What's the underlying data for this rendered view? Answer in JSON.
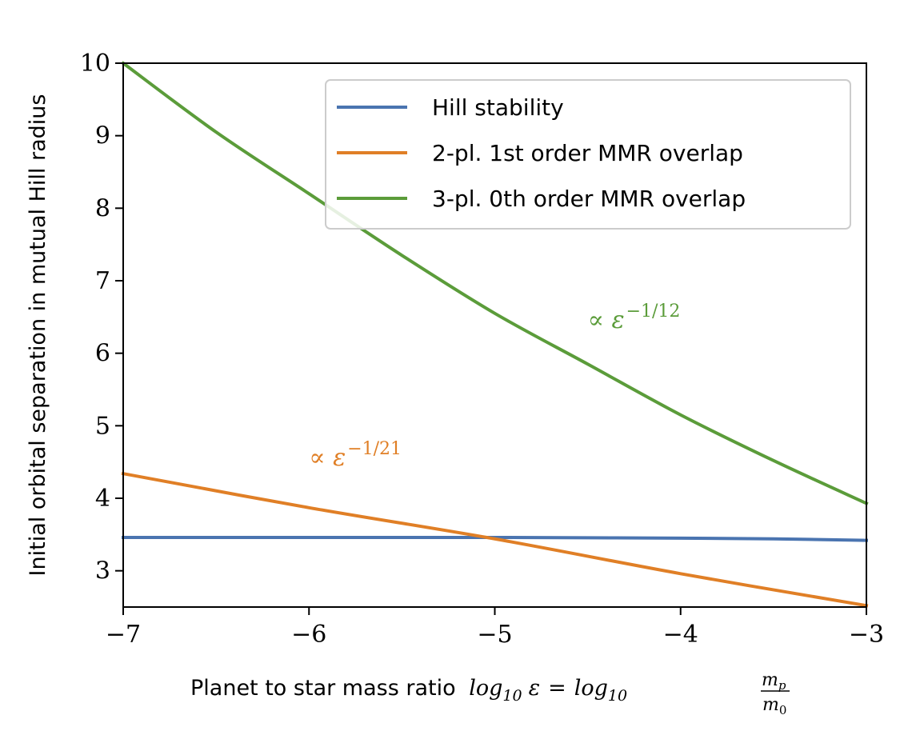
{
  "chart_data": {
    "type": "line",
    "xlabel_text": "Planet to star mass ratio",
    "xlabel_math": {
      "log": "log",
      "sub": "10",
      "eps": "ε",
      "eq": "=",
      "num": "m",
      "num_sub": "p",
      "den": "m",
      "den_sub": "0"
    },
    "ylabel": "Initial orbital separation in mutual Hill radius",
    "xlim": [
      -7,
      -3
    ],
    "ylim": [
      2.5,
      10
    ],
    "xticks": [
      -7,
      -6,
      -5,
      -4,
      -3
    ],
    "xtick_labels": [
      "−7",
      "−6",
      "−5",
      "−4",
      "−3"
    ],
    "yticks": [
      3,
      4,
      5,
      6,
      7,
      8,
      9,
      10
    ],
    "ytick_labels": [
      "3",
      "4",
      "5",
      "6",
      "7",
      "8",
      "9",
      "10"
    ],
    "legend_position": "upper-right",
    "series": [
      {
        "name": "Hill stability",
        "color": "#4a74b0",
        "x": [
          -7,
          -6,
          -5,
          -4.5,
          -4,
          -3.5,
          -3
        ],
        "y": [
          3.46,
          3.46,
          3.46,
          3.455,
          3.45,
          3.44,
          3.42
        ]
      },
      {
        "name": "2-pl. 1st order MMR overlap",
        "color": "#e07f26",
        "x": [
          -7,
          -6,
          -5,
          -4,
          -3
        ],
        "y": [
          4.34,
          3.87,
          3.44,
          2.96,
          2.52
        ]
      },
      {
        "name": "3-pl. 0th order MMR overlap",
        "color": "#5b9c3a",
        "x": [
          -7,
          -6.5,
          -6,
          -5.5,
          -5,
          -4.5,
          -4,
          -3.5,
          -3
        ],
        "y": [
          10.0,
          9.05,
          8.2,
          7.35,
          6.55,
          5.85,
          5.15,
          4.52,
          3.93
        ]
      }
    ],
    "annotations": [
      {
        "prefix": "∝",
        "base": "ε",
        "exponent": "−1/21",
        "color": "#e07f26",
        "x": -6,
        "y": 4.45
      },
      {
        "prefix": "∝",
        "base": "ε",
        "exponent": "−1/12",
        "color": "#5b9c3a",
        "x": -4.5,
        "y": 6.35
      }
    ]
  }
}
